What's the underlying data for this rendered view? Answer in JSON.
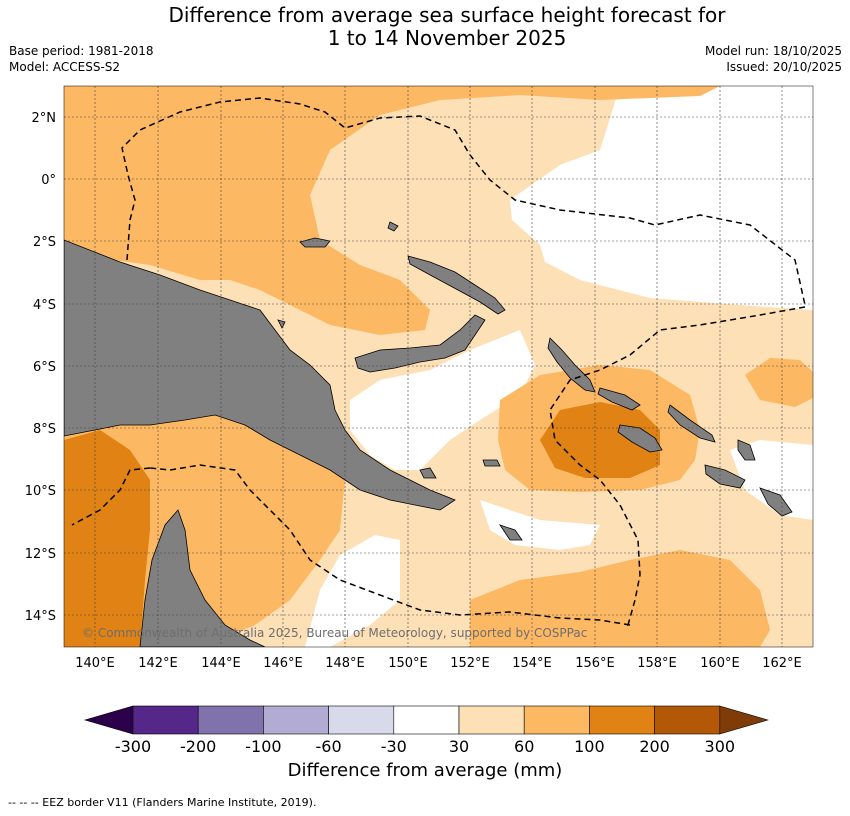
{
  "header": {
    "title_line1": "Difference from average sea surface height forecast for",
    "title_line2": "1 to 14 November 2025",
    "base_period": "Base period: 1981-2018",
    "model": "Model: ACCESS-S2",
    "model_run": "Model run: 18/10/2025",
    "issued": "Issued: 20/10/2025"
  },
  "map": {
    "lon_ticks": [
      "140°E",
      "142°E",
      "144°E",
      "146°E",
      "148°E",
      "150°E",
      "152°E",
      "154°E",
      "156°E",
      "158°E",
      "160°E",
      "162°E"
    ],
    "lat_ticks": [
      "2°N",
      "0°",
      "2°S",
      "4°S",
      "6°S",
      "8°S",
      "10°S",
      "12°S",
      "14°S"
    ],
    "copyright": "© Commonwealth of Australia 2025, Bureau of Meteorology, supported by COSPPac",
    "land_color": "#808080"
  },
  "colorbar": {
    "ticks": [
      "-300",
      "-200",
      "-100",
      "-60",
      "-30",
      "30",
      "60",
      "100",
      "200",
      "300"
    ],
    "colors": [
      "#2d004b",
      "#542788",
      "#8073ac",
      "#b2abd2",
      "#d8daeb",
      "#ffffff",
      "#fee0b6",
      "#fdb863",
      "#e08214",
      "#b35806",
      "#7f3b08"
    ],
    "label": "Difference from average (mm)"
  },
  "footnote": "--  --  -- EEZ border V11 (Flanders Marine Institute, 2019)."
}
